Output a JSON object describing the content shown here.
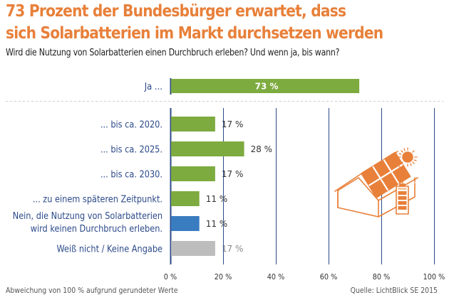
{
  "header": {
    "title_line1": "73 Prozent der Bundesbürger erwartet, dass",
    "title_line2": "sich Solarbatterien im Markt durchsetzen werden",
    "subtitle": "Wird die Nutzung von Solarbatterien einen Durchbruch erleben? Und wenn ja, bis wann?"
  },
  "footer": {
    "note": "Abweichung von 100 % aufgrund gerundeter Werte",
    "source": "Quelle: LichtBlick SE 2015"
  },
  "colors": {
    "title": "#e8803a",
    "label": "#2c4a8a",
    "axis": "#2c4a8a",
    "green": "#7dab3f",
    "blue": "#3a7cc0",
    "gray": "#bdbdbd",
    "illustration": "#e8803a"
  },
  "illustration": {
    "icon": "house-solar-battery-icon"
  },
  "chart_data": {
    "type": "bar",
    "orientation": "horizontal",
    "title": "73 Prozent der Bundesbürger erwartet, dass sich Solarbatterien im Markt durchsetzen werden",
    "subtitle": "Wird die Nutzung von Solarbatterien einen Durchbruch erleben? Und wenn ja, bis wann?",
    "xlabel": "",
    "ylabel": "",
    "xlim": [
      0,
      100
    ],
    "grid": true,
    "x_ticks": [
      0,
      20,
      40,
      60,
      80,
      100
    ],
    "x_tick_labels": [
      "0 %",
      "20 %",
      "40 %",
      "60 %",
      "80 %",
      "100 %"
    ],
    "unit": "%",
    "summary": {
      "label": "Ja ...",
      "value": 73,
      "value_label": "73 %",
      "color": "green",
      "label_inside": true
    },
    "categories": [
      "... bis ca. 2020.",
      "... bis ca. 2025.",
      "... bis ca. 2030.",
      "... zu einem späteren Zeitpunkt.",
      "Nein, die Nutzung von Solarbatterien|wird keinen Durchbruch erleben.",
      "Weiß nicht / Keine Angabe"
    ],
    "values": [
      17,
      28,
      17,
      11,
      11,
      17
    ],
    "value_labels": [
      "17 %",
      "28 %",
      "17 %",
      "11 %",
      "11 %",
      "17 %"
    ],
    "bar_colors": [
      "green",
      "green",
      "green",
      "green",
      "blue",
      "gray"
    ]
  }
}
